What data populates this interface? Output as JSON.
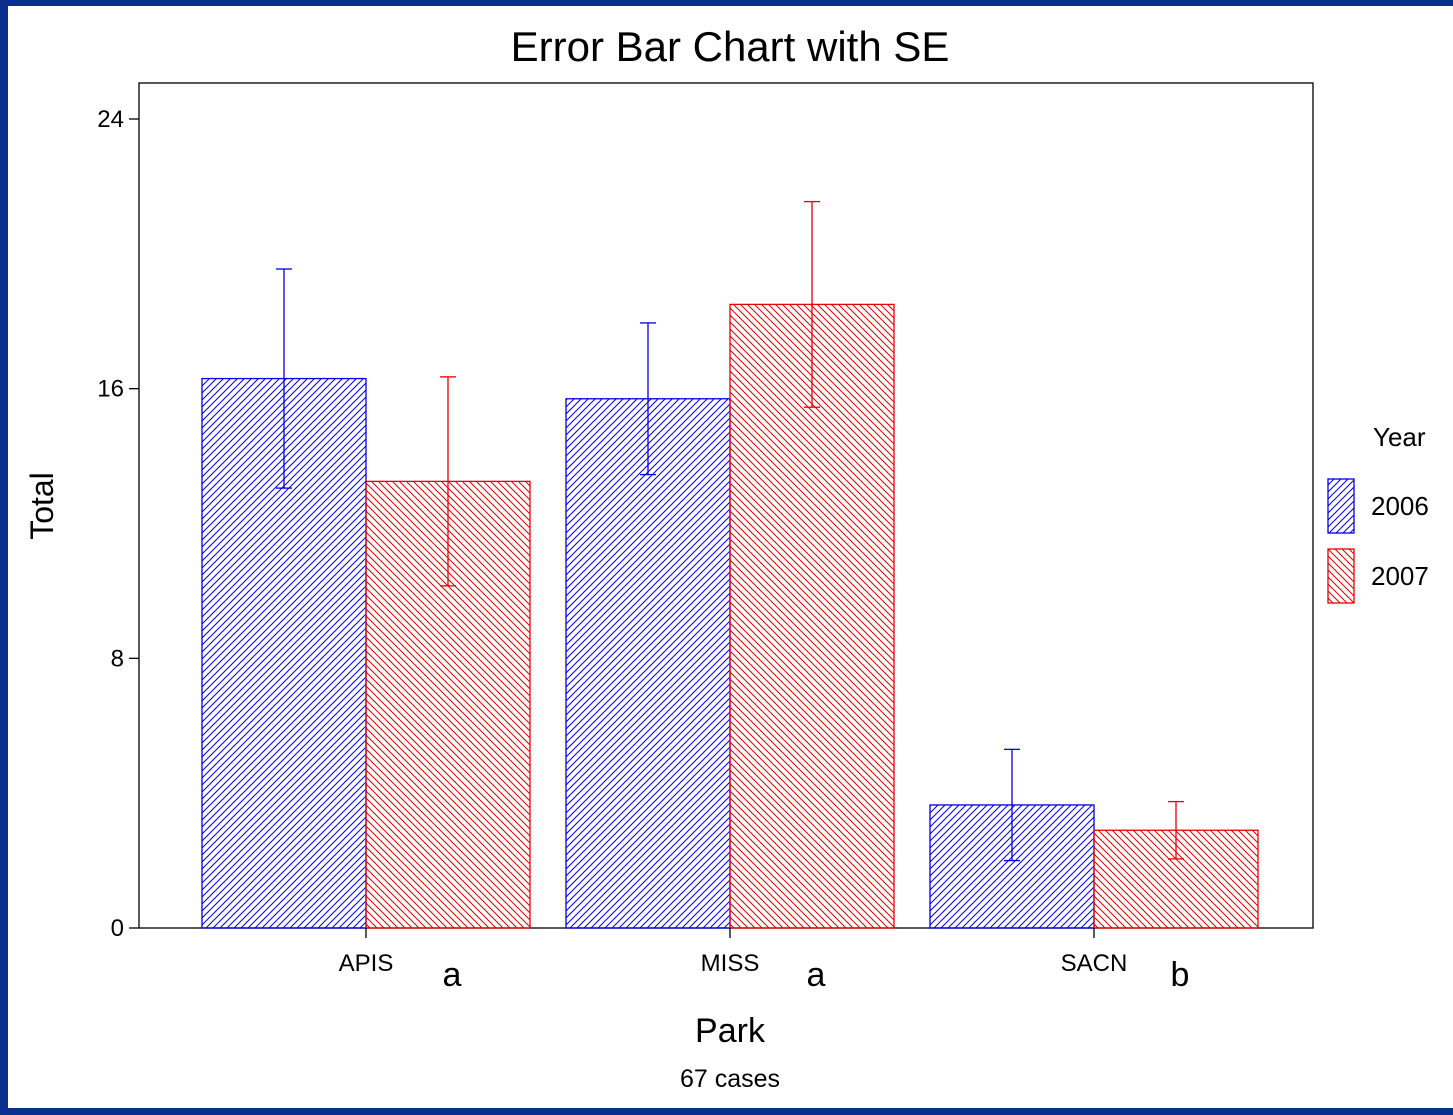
{
  "colors": {
    "frame_border": "#0b2f8c",
    "series_2006": "#0000e6",
    "series_2007": "#e60000"
  },
  "chart_data": {
    "type": "bar",
    "title": "Error Bar Chart with SE",
    "xlabel": "Park",
    "ylabel": "Total",
    "footnote": "67 cases",
    "ylim": [
      0,
      24
    ],
    "yticks": [
      "0",
      "8",
      "16",
      "24"
    ],
    "categories": [
      "APIS",
      "MISS",
      "SACN"
    ],
    "group_letters": [
      "a",
      "a",
      "b"
    ],
    "legend": {
      "title": "Year",
      "position": "right"
    },
    "grid": false,
    "series": [
      {
        "name": "2006",
        "values": [
          16.3,
          15.7,
          3.65
        ],
        "se": [
          3.25,
          2.25,
          1.65
        ]
      },
      {
        "name": "2007",
        "values": [
          13.25,
          18.5,
          2.9
        ],
        "se": [
          3.1,
          3.05,
          0.85
        ]
      }
    ]
  }
}
